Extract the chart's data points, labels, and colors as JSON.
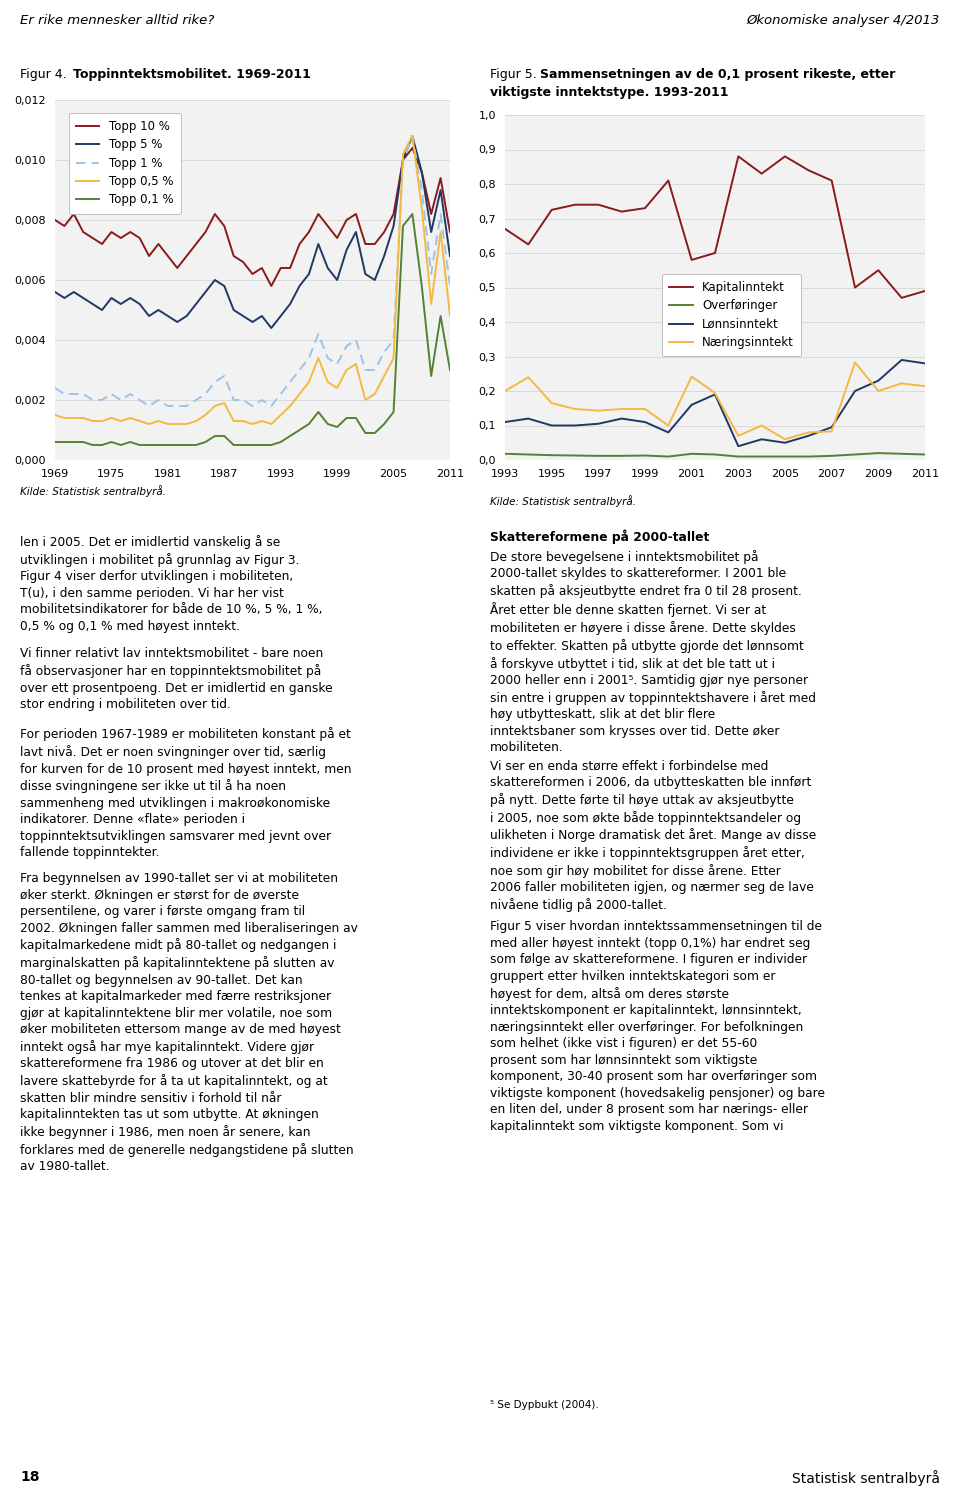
{
  "fig4_title_plain": "Figur 4.",
  "fig4_title_bold": "Toppinntektsmobilitet. 1969-2011",
  "fig5_title_plain": "Figur 5.",
  "fig5_title_bold": "Sammensetningen av de 0,1 prosent rikeste, etter viktigste inntektstype. 1993-2011",
  "header_left": "Er rike mennesker alltid rike?",
  "header_right": "Økonomiske analyser 4/2013",
  "source_text": "Kilde: Statistisk sentralbyrå.",
  "fig4_years": [
    1969,
    1970,
    1971,
    1972,
    1973,
    1974,
    1975,
    1976,
    1977,
    1978,
    1979,
    1980,
    1981,
    1982,
    1983,
    1984,
    1985,
    1986,
    1987,
    1988,
    1989,
    1990,
    1991,
    1992,
    1993,
    1994,
    1995,
    1996,
    1997,
    1998,
    1999,
    2000,
    2001,
    2002,
    2003,
    2004,
    2005,
    2006,
    2007,
    2008,
    2009,
    2010,
    2011
  ],
  "fig4_topp10": [
    0.008,
    0.0078,
    0.0082,
    0.0076,
    0.0074,
    0.0072,
    0.0076,
    0.0074,
    0.0076,
    0.0074,
    0.0068,
    0.0072,
    0.0068,
    0.0064,
    0.0068,
    0.0072,
    0.0076,
    0.0082,
    0.0078,
    0.0068,
    0.0066,
    0.0062,
    0.0064,
    0.0058,
    0.0064,
    0.0064,
    0.0072,
    0.0076,
    0.0082,
    0.0078,
    0.0074,
    0.008,
    0.0082,
    0.0072,
    0.0072,
    0.0076,
    0.0082,
    0.01,
    0.0104,
    0.0096,
    0.0082,
    0.0094,
    0.0076
  ],
  "fig4_topp5": [
    0.0056,
    0.0054,
    0.0056,
    0.0054,
    0.0052,
    0.005,
    0.0054,
    0.0052,
    0.0054,
    0.0052,
    0.0048,
    0.005,
    0.0048,
    0.0046,
    0.0048,
    0.0052,
    0.0056,
    0.006,
    0.0058,
    0.005,
    0.0048,
    0.0046,
    0.0048,
    0.0044,
    0.0048,
    0.0052,
    0.0058,
    0.0062,
    0.0072,
    0.0064,
    0.006,
    0.007,
    0.0076,
    0.0062,
    0.006,
    0.0068,
    0.0078,
    0.01,
    0.0108,
    0.0096,
    0.0076,
    0.009,
    0.0068
  ],
  "fig4_topp1": [
    0.0024,
    0.0022,
    0.0022,
    0.0022,
    0.002,
    0.002,
    0.0022,
    0.002,
    0.0022,
    0.002,
    0.0018,
    0.002,
    0.0018,
    0.0018,
    0.0018,
    0.002,
    0.0022,
    0.0026,
    0.0028,
    0.002,
    0.002,
    0.0018,
    0.002,
    0.0018,
    0.0022,
    0.0026,
    0.003,
    0.0034,
    0.0042,
    0.0034,
    0.0032,
    0.0038,
    0.004,
    0.003,
    0.003,
    0.0036,
    0.004,
    0.01,
    0.0108,
    0.009,
    0.0062,
    0.0082,
    0.0058
  ],
  "fig4_topp05": [
    0.0015,
    0.0014,
    0.0014,
    0.0014,
    0.0013,
    0.0013,
    0.0014,
    0.0013,
    0.0014,
    0.0013,
    0.0012,
    0.0013,
    0.0012,
    0.0012,
    0.0012,
    0.0013,
    0.0015,
    0.0018,
    0.0019,
    0.0013,
    0.0013,
    0.0012,
    0.0013,
    0.0012,
    0.0015,
    0.0018,
    0.0022,
    0.0026,
    0.0034,
    0.0026,
    0.0024,
    0.003,
    0.0032,
    0.002,
    0.0022,
    0.0028,
    0.0034,
    0.0102,
    0.0108,
    0.0084,
    0.0052,
    0.0076,
    0.0048
  ],
  "fig4_topp01": [
    0.0006,
    0.0006,
    0.0006,
    0.0006,
    0.0005,
    0.0005,
    0.0006,
    0.0005,
    0.0006,
    0.0005,
    0.0005,
    0.0005,
    0.0005,
    0.0005,
    0.0005,
    0.0005,
    0.0006,
    0.0008,
    0.0008,
    0.0005,
    0.0005,
    0.0005,
    0.0005,
    0.0005,
    0.0006,
    0.0008,
    0.001,
    0.0012,
    0.0016,
    0.0012,
    0.0011,
    0.0014,
    0.0014,
    0.0009,
    0.0009,
    0.0012,
    0.0016,
    0.0078,
    0.0082,
    0.0058,
    0.0028,
    0.0048,
    0.003
  ],
  "fig4_colors": {
    "topp10": "#8B1A1A",
    "topp5": "#1F3864",
    "topp1": "#9DC3E6",
    "topp05": "#F4B942",
    "topp01": "#548235"
  },
  "fig4_ylim": [
    0.0,
    0.012
  ],
  "fig4_yticks": [
    0.0,
    0.002,
    0.004,
    0.006,
    0.008,
    0.01,
    0.012
  ],
  "fig4_xticks": [
    1969,
    1975,
    1981,
    1987,
    1993,
    1999,
    2005,
    2011
  ],
  "fig5_years": [
    1993,
    1994,
    1995,
    1996,
    1997,
    1998,
    1999,
    2000,
    2001,
    2002,
    2003,
    2004,
    2005,
    2006,
    2007,
    2008,
    2009,
    2010,
    2011
  ],
  "fig5_kapital": [
    0.67,
    0.625,
    0.725,
    0.74,
    0.74,
    0.72,
    0.73,
    0.81,
    0.58,
    0.6,
    0.88,
    0.83,
    0.88,
    0.84,
    0.81,
    0.5,
    0.55,
    0.47,
    0.49
  ],
  "fig5_overforing": [
    0.018,
    0.016,
    0.014,
    0.013,
    0.012,
    0.012,
    0.013,
    0.01,
    0.018,
    0.016,
    0.01,
    0.01,
    0.01,
    0.01,
    0.012,
    0.016,
    0.02,
    0.018,
    0.016
  ],
  "fig5_lonn": [
    0.11,
    0.12,
    0.1,
    0.1,
    0.105,
    0.12,
    0.11,
    0.08,
    0.16,
    0.19,
    0.04,
    0.06,
    0.05,
    0.07,
    0.095,
    0.2,
    0.23,
    0.29,
    0.28
  ],
  "fig5_naering": [
    0.2,
    0.24,
    0.165,
    0.148,
    0.143,
    0.148,
    0.148,
    0.1,
    0.242,
    0.194,
    0.07,
    0.1,
    0.06,
    0.08,
    0.083,
    0.283,
    0.2,
    0.222,
    0.214
  ],
  "fig5_colors": {
    "kapital": "#8B1A1A",
    "overforing": "#548235",
    "lonn": "#1F3864",
    "naering": "#F4B942"
  },
  "fig5_ylim": [
    0.0,
    1.0
  ],
  "fig5_yticks": [
    0.0,
    0.1,
    0.2,
    0.3,
    0.4,
    0.5,
    0.6,
    0.7,
    0.8,
    0.9,
    1.0
  ],
  "fig5_xticks": [
    1993,
    1995,
    1997,
    1999,
    2001,
    2003,
    2005,
    2007,
    2009,
    2011
  ],
  "legend4_labels": [
    "Topp 10 %",
    "Topp 5 %",
    "Topp 1 %",
    "Topp 0,5 %",
    "Topp 0,1 %"
  ],
  "legend5_labels": [
    "Kapitalinntekt",
    "Overføringer",
    "Lønnsinntekt",
    "Næringsinntekt"
  ],
  "body_left_paras": [
    "len i 2005. Det er imidlertid vanskelig å se utviklingen i mobilitet på grunnlag av Figur 3. Figur 4 viser derfor utviklingen i mobiliteten, T(u), i den samme perioden. Vi har her vist mobilitetsindikatorer for både de 10 %, 5 %, 1 %, 0,5 % og 0,1 % med høyest inntekt.",
    "Vi finner relativt lav inntektsmobilitet - bare noen få observasjoner har en toppinntektsmobilitet på over ett prosentpoeng. Det er imidlertid en ganske stor endring i mobiliteten over tid.",
    "For perioden 1967-1989 er mobiliteten konstant på et lavt nivå. Det er noen svingninger over tid, særlig for kurven for de 10 prosent med høyest inntekt, men disse svingningene ser ikke ut til å ha noen sammenheng med utviklingen i makroøkonomiske indikatorer. Denne «flate» perioden i toppinntektsutviklingen samsvarer med jevnt over fallende toppinntekter.",
    "Fra begynnelsen av 1990-tallet ser vi at mobiliteten øker sterkt. Økningen er størst for de øverste persentilene, og varer i første omgang fram til 2002. Økningen faller sammen med liberaliseringen av kapitalmarkedene midt på 80-tallet og nedgangen i marginalskatten på kapitalinntektene på slutten av 80-tallet og begynnelsen av 90-tallet. Det kan tenkes at kapitalmarkeder med færre restriksjoner gjør at kapitalinntektene blir mer volatile, noe som øker mobiliteten ettersom mange av de med høyest inntekt også har mye kapitalinntekt. Videre gjør skattereformene fra 1986 og utover at det blir en lavere skattebyrde for å ta ut kapitalinntekt, og at skatten blir mindre sensitiv i forhold til når kapitalinntekten tas ut som utbytte. At økningen ikke begynner i 1986, men noen år senere, kan forklares med de generelle nedgangstidene på slutten av 1980-tallet."
  ],
  "body_right_heading": "Skattereformene på 2000-tallet",
  "body_right_paras": [
    "De store bevegelsene i inntektsmobilitet på 2000-tallet skyldes to skattereformer. I 2001 ble skatten på aksjeutbytte endret fra 0 til 28 prosent. Året etter ble denne skatten fjernet. Vi ser at mobiliteten er høyere i disse årene. Dette skyldes to effekter. Skatten på utbytte gjorde det lønnsomt å forskyve utbyttet i tid, slik at det ble tatt ut i 2000 heller enn i 2001⁵. Samtidig gjør nye personer sin entre i gruppen av toppinntektshavere i året med høy utbytteskatt, slik at det blir flere inntektsbaner som krysses over tid. Dette øker mobiliteten.",
    "Vi ser en enda større effekt i forbindelse med skattereformen i 2006, da utbytteskatten ble innført på nytt. Dette førte til høye uttak av aksjeutbytte i 2005, noe som økte både toppinntektsandeler og ulikheten i Norge dramatisk det året. Mange av disse individene er ikke i toppinntektsgruppen året etter, noe som gir høy mobilitet for disse årene. Etter 2006 faller mobiliteten igjen, og nærmer seg de lave nivåene tidlig på 2000-tallet.",
    "Figur 5 viser hvordan inntektssammensetningen til de med aller høyest inntekt (topp 0,1%) har endret seg som følge av skattereformene. I figuren er individer gruppert etter hvilken inntektskategori som er høyest for dem, altså om deres største inntektskomponent er kapitalinntekt, lønnsinntekt, næringsinntekt eller overføringer. For befolkningen som helhet (ikke vist i figuren) er det 55-60 prosent som har lønnsinntekt som viktigste komponent, 30-40 prosent som har overføringer som viktigste komponent (hovedsakelig pensjoner) og bare en liten del, under 8 prosent som har nærings- eller kapitalinntekt som viktigste komponent. Som vi"
  ],
  "footnote": "⁵ Se Dypbukt (2004).",
  "page_number": "18",
  "footer_right": "Statistisk sentralbyrå"
}
